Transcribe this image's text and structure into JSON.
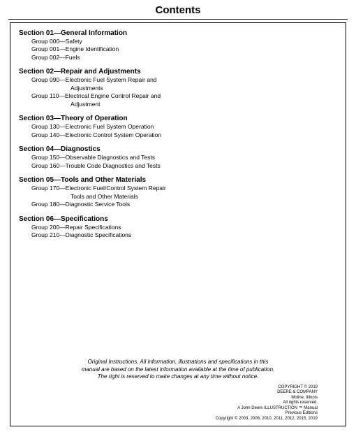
{
  "title": "Contents",
  "sections": [
    {
      "heading": "Section 01—General Information",
      "groups": [
        {
          "text": "Group 000—Safety"
        },
        {
          "text": "Group 001—Engine Identification"
        },
        {
          "text": "Group 002—Fuels"
        }
      ]
    },
    {
      "heading": "Section 02—Repair and Adjustments",
      "groups": [
        {
          "text": "Group 090—Electronic Fuel System Repair and",
          "cont": "Adjustments"
        },
        {
          "text": "Group 110—Electrical Engine Control Repair and",
          "cont": "Adjustment"
        }
      ]
    },
    {
      "heading": "Section 03—Theory of Operation",
      "groups": [
        {
          "text": "Group 130—Electronic Fuel System Operation"
        },
        {
          "text": "Group 140—Electronic Control System Operation"
        }
      ]
    },
    {
      "heading": "Section 04—Diagnostics",
      "groups": [
        {
          "text": "Group 150—Observable Diagnostics and Tests"
        },
        {
          "text": "Group 160—Trouble Code Diagnostics and Tests"
        }
      ]
    },
    {
      "heading": "Section 05—Tools and Other Materials",
      "groups": [
        {
          "text": "Group 170—Electronic Fuel/Control System Repair",
          "cont": "Tools and Other Materials"
        },
        {
          "text": "Group 180—Diagnostic Service Tools"
        }
      ]
    },
    {
      "heading": "Section 06—Specifications",
      "groups": [
        {
          "text": "Group 200—Repair Specifications"
        },
        {
          "text": "Group 210—Diagnostic Specifications"
        }
      ]
    }
  ],
  "disclaimer": {
    "l1": "Original Instructions. All information, illustrations and specifications in this",
    "l2": "manual are based on the latest information available at the time of publication.",
    "l3": "The right is reserved to make changes at any time without notice."
  },
  "copyright": {
    "l1": "COPYRIGHT © 2019",
    "l2": "DEERE & COMPANY",
    "l3": "Moline, Illinois",
    "l4": "All rights reserved.",
    "l5": "A John Deere ILLUSTRUCTION ™ Manual",
    "l6": "Previous Editions",
    "l7": "Copyright © 2003, 2006, 2010, 2011, 2012, 2015, 2019"
  }
}
